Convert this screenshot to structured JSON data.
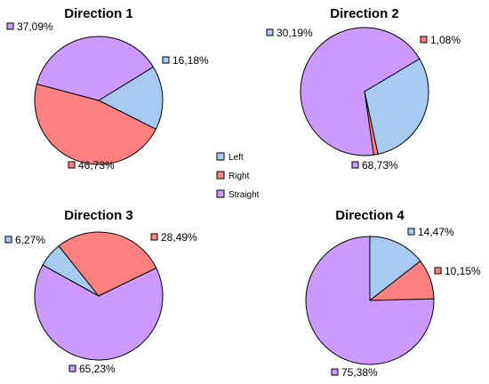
{
  "chart_data": [
    {
      "type": "pie",
      "title": "Direction 1",
      "slices": [
        {
          "category": "Left",
          "value": 16.18,
          "label": "16,18%"
        },
        {
          "category": "Right",
          "value": 46.73,
          "label": "46,73%"
        },
        {
          "category": "Straight",
          "value": 37.09,
          "label": "37,09%"
        }
      ]
    },
    {
      "type": "pie",
      "title": "Direction 2",
      "slices": [
        {
          "category": "Left",
          "value": 30.19,
          "label": "30,19%"
        },
        {
          "category": "Right",
          "value": 1.08,
          "label": "1,08%"
        },
        {
          "category": "Straight",
          "value": 68.73,
          "label": "68,73%"
        }
      ]
    },
    {
      "type": "pie",
      "title": "Direction 3",
      "slices": [
        {
          "category": "Left",
          "value": 6.27,
          "label": "6,27%"
        },
        {
          "category": "Right",
          "value": 28.49,
          "label": "28,49%"
        },
        {
          "category": "Straight",
          "value": 65.23,
          "label": "65,23%"
        }
      ]
    },
    {
      "type": "pie",
      "title": "Direction 4",
      "slices": [
        {
          "category": "Left",
          "value": 14.47,
          "label": "14,47%"
        },
        {
          "category": "Right",
          "value": 10.15,
          "label": "10,15%"
        },
        {
          "category": "Straight",
          "value": 75.38,
          "label": "75,38%"
        }
      ]
    }
  ],
  "legend": {
    "placement": "center",
    "items": [
      {
        "category": "Left",
        "label": "Left",
        "color": "#a6caf0"
      },
      {
        "category": "Right",
        "label": "Right",
        "color": "#ff8080"
      },
      {
        "category": "Straight",
        "label": "Straight",
        "color": "#cc99ff"
      }
    ]
  },
  "colors": {
    "Left": "#a6caf0",
    "Right": "#ff8080",
    "Straight": "#cc99ff",
    "outline": "#000000",
    "text": "#000000"
  }
}
